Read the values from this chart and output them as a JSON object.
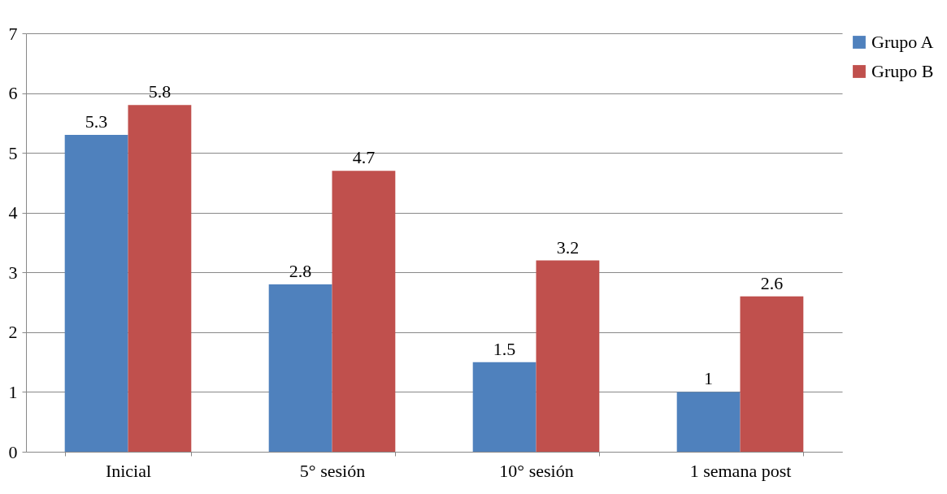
{
  "chart_data": {
    "type": "bar",
    "categories": [
      "Inicial",
      "5° sesión",
      "10° sesión",
      "1 semana post"
    ],
    "series": [
      {
        "name": "Grupo A",
        "color": "#4f81bd",
        "values": [
          5.3,
          2.8,
          1.5,
          1
        ]
      },
      {
        "name": "Grupo B",
        "color": "#c0504d",
        "values": [
          5.8,
          4.7,
          3.2,
          2.6
        ]
      }
    ],
    "ylim": [
      0,
      7
    ],
    "yticks": [
      0,
      1,
      2,
      3,
      4,
      5,
      6,
      7
    ],
    "grid": "y",
    "legend": "right",
    "data_labels": true
  }
}
